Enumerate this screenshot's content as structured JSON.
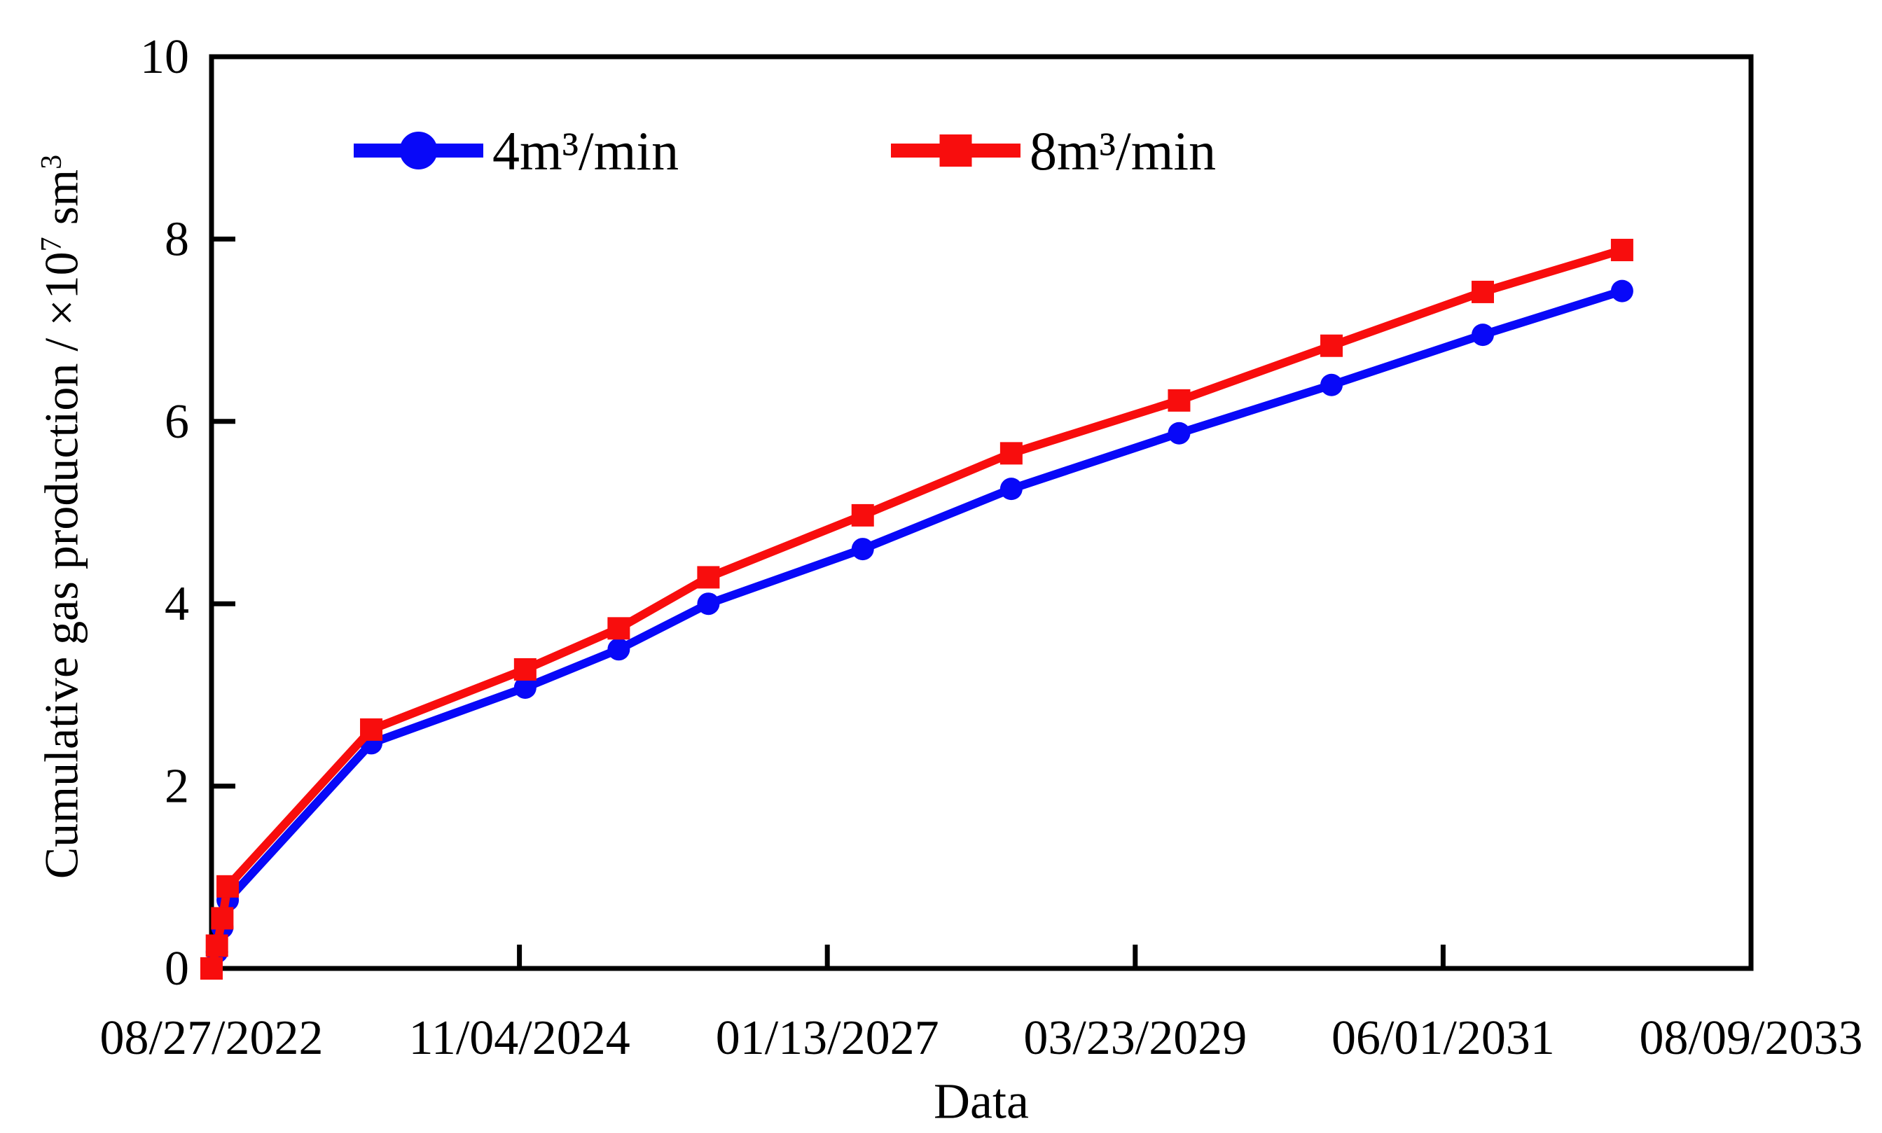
{
  "figure": {
    "xlabel": "Data",
    "ylabel": {
      "prefix": "Cumulative gas production / ×10",
      "sup1": "7",
      "mid": " sm",
      "sup2": "3"
    },
    "background_color": "#ffffff",
    "frame_color": "#000000"
  },
  "chart_data": {
    "type": "line",
    "title": "",
    "xlabel": "Data",
    "ylabel": "Cumulative gas production / ×10⁷ sm³",
    "grid": false,
    "legend_position": "top-inside",
    "x_axis": {
      "kind": "date",
      "start_date": "08/27/2022",
      "end_date": "08/09/2033",
      "range_days": [
        0,
        4000
      ],
      "tick_interval_days": 800,
      "tick_labels": [
        "08/27/2022",
        "11/04/2024",
        "01/13/2027",
        "03/23/2029",
        "06/01/2031",
        "08/09/2033"
      ]
    },
    "y_axis": {
      "ticks": [
        0,
        2,
        4,
        6,
        8,
        10
      ],
      "tick_labels": [
        "0",
        "2",
        "4",
        "6",
        "8",
        "10"
      ],
      "range": [
        0,
        10
      ]
    },
    "x_days": [
      0,
      14,
      28,
      42,
      415,
      815,
      1058,
      1291,
      1692,
      2078,
      2514,
      2910,
      3303,
      3665
    ],
    "series": [
      {
        "name": "4m³/min",
        "color": "#0808f8",
        "marker": "circle",
        "values": [
          0.0,
          0.18,
          0.45,
          0.75,
          2.47,
          3.08,
          3.5,
          4.0,
          4.6,
          5.26,
          5.87,
          6.4,
          6.95,
          7.43
        ]
      },
      {
        "name": "8m³/min",
        "color": "#f80d0d",
        "marker": "square",
        "values": [
          0.0,
          0.25,
          0.55,
          0.9,
          2.62,
          3.28,
          3.73,
          4.29,
          4.97,
          5.65,
          6.23,
          6.83,
          7.42,
          7.88
        ]
      }
    ]
  }
}
